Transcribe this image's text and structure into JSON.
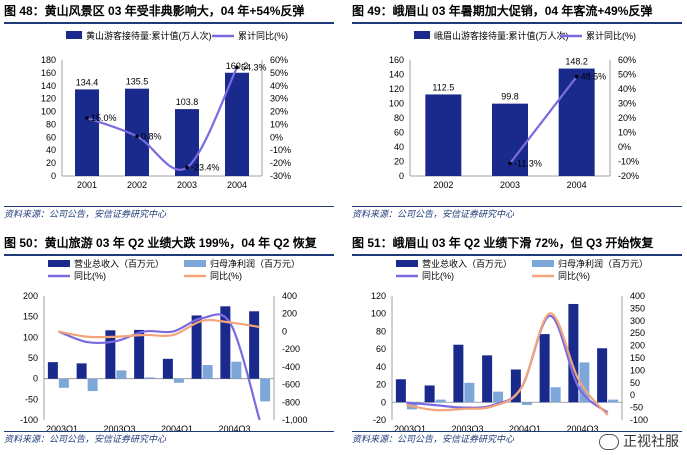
{
  "panels": [
    {
      "title": "图 48：黄山风景区 03 年受非典影响大，04 年+54%反弹",
      "source": "资料来源：公司公告，安信证券研究中心"
    },
    {
      "title": "图 49：峨眉山 03 年暑期加大促销，04 年客流+49%反弹",
      "source": "资料来源：公司公告，安信证券研究中心"
    },
    {
      "title": "图 50：黄山旅游 03 年 Q2 业绩大跌 199%，04 年 Q2 恢复",
      "source": "资料来源：公司公告，安信证券研究中心"
    },
    {
      "title": "图 51：峨眉山 03 年 Q2 业绩下滑 72%，但 Q3 开始恢复",
      "source": "资料来源：公司公告，安信证券研究中心"
    }
  ],
  "watermark": "正视社服",
  "colors": {
    "navy": "#1a2a8c",
    "light": "#7da7d9",
    "purple": "#7b6be0",
    "orange": "#f2a47a",
    "rule": "#1f3a78"
  },
  "chart_data": [
    {
      "type": "bar",
      "categories": [
        "2001",
        "2002",
        "2003",
        "2004"
      ],
      "series": [
        {
          "name": "黄山游客接待量:累计值(万人次)",
          "values": [
            134.4,
            135.5,
            103.8,
            160.2
          ],
          "axis": "left",
          "kind": "bar",
          "labels": [
            "134.4",
            "135.5",
            "103.8",
            "160.2"
          ]
        },
        {
          "name": "累计同比(%)",
          "values": [
            15.0,
            0.8,
            -23.4,
            54.3
          ],
          "axis": "right",
          "kind": "line",
          "labels": [
            "15.0%",
            "0.8%",
            "-23.4%",
            "54.3%"
          ]
        }
      ],
      "ylim": [
        0,
        180
      ],
      "yticks": [
        "0",
        "20",
        "40",
        "60",
        "80",
        "100",
        "120",
        "140",
        "160",
        "180"
      ],
      "y2lim": [
        -30,
        60
      ],
      "y2ticks": [
        "-30%",
        "-20%",
        "-10%",
        "0%",
        "10%",
        "20%",
        "30%",
        "40%",
        "50%",
        "60%"
      ],
      "legend": "top"
    },
    {
      "type": "bar",
      "categories": [
        "2002",
        "2003",
        "2004"
      ],
      "series": [
        {
          "name": "峨眉山游客接待量:累计值(万人次)",
          "values": [
            112.5,
            99.8,
            148.2
          ],
          "axis": "left",
          "kind": "bar",
          "labels": [
            "112.5",
            "99.8",
            "148.2"
          ]
        },
        {
          "name": "累计同比(%)",
          "values": [
            null,
            -11.3,
            48.5
          ],
          "axis": "right",
          "kind": "line",
          "labels": [
            "",
            "-11.3%",
            "48.5%"
          ]
        }
      ],
      "ylim": [
        0,
        160
      ],
      "yticks": [
        "0",
        "20",
        "40",
        "60",
        "80",
        "100",
        "120",
        "140",
        "160"
      ],
      "y2lim": [
        -20,
        60
      ],
      "y2ticks": [
        "-20%",
        "-10%",
        "0%",
        "10%",
        "20%",
        "30%",
        "40%",
        "50%",
        "60%"
      ],
      "legend": "top"
    },
    {
      "type": "bar",
      "categories": [
        "2003Q1",
        "2003Q2",
        "2003Q3",
        "2003Q4",
        "2004Q1",
        "2004Q2",
        "2004Q3",
        "2004Q4"
      ],
      "xticks": [
        "2003Q1",
        "2003Q3",
        "2004Q1",
        "2004Q3"
      ],
      "series": [
        {
          "name": "营业总收入（百万元）",
          "values": [
            40,
            37,
            117,
            118,
            48,
            153,
            175,
            163
          ],
          "axis": "left",
          "kind": "bar"
        },
        {
          "name": "归母净利润（百万元）",
          "values": [
            -22,
            -30,
            20,
            3,
            -10,
            33,
            41,
            -55
          ],
          "axis": "left",
          "kind": "bar"
        },
        {
          "name": "同比(%)",
          "values": [
            0,
            -120,
            -110,
            0,
            0,
            150,
            80,
            -1000
          ],
          "axis": "right",
          "kind": "line"
        },
        {
          "name": "同比(%)",
          "values": [
            0,
            -60,
            -60,
            -40,
            -40,
            120,
            100,
            50
          ],
          "axis": "right",
          "kind": "line"
        }
      ],
      "ylim": [
        -100,
        200
      ],
      "yticks": [
        "-100",
        "-50",
        "0",
        "50",
        "100",
        "150",
        "200"
      ],
      "y2lim": [
        -1000,
        400
      ],
      "y2ticks": [
        "-1,000",
        "-800",
        "-600",
        "-400",
        "-200",
        "0",
        "200",
        "400"
      ],
      "legend": "top"
    },
    {
      "type": "bar",
      "categories": [
        "2003Q1",
        "2003Q2",
        "2003Q3",
        "2003Q4",
        "2004Q1",
        "2004Q2",
        "2004Q3",
        "2004Q4"
      ],
      "xticks": [
        "2003Q1",
        "2003Q3",
        "2004Q1",
        "2004Q3"
      ],
      "series": [
        {
          "name": "营业总收入（百万元）",
          "values": [
            26,
            19,
            65,
            53,
            37,
            77,
            111,
            61
          ],
          "axis": "left",
          "kind": "bar"
        },
        {
          "name": "归母净利润（百万元）",
          "values": [
            -8,
            3,
            22,
            12,
            -3,
            17,
            45,
            3
          ],
          "axis": "left",
          "kind": "bar"
        },
        {
          "name": "同比(%)",
          "values": [
            -30,
            -40,
            -50,
            -40,
            30,
            320,
            30,
            -70
          ],
          "axis": "right",
          "kind": "line"
        },
        {
          "name": "同比(%)",
          "values": [
            -40,
            -60,
            -55,
            -45,
            30,
            330,
            60,
            -80
          ],
          "axis": "right",
          "kind": "line"
        }
      ],
      "ylim": [
        -20,
        120
      ],
      "yticks": [
        "-20",
        "0",
        "20",
        "40",
        "60",
        "80",
        "100",
        "120"
      ],
      "y2lim": [
        -100,
        400
      ],
      "y2ticks": [
        "-100",
        "-50",
        "0",
        "50",
        "100",
        "150",
        "200",
        "250",
        "300",
        "350",
        "400"
      ],
      "legend": "top"
    }
  ]
}
